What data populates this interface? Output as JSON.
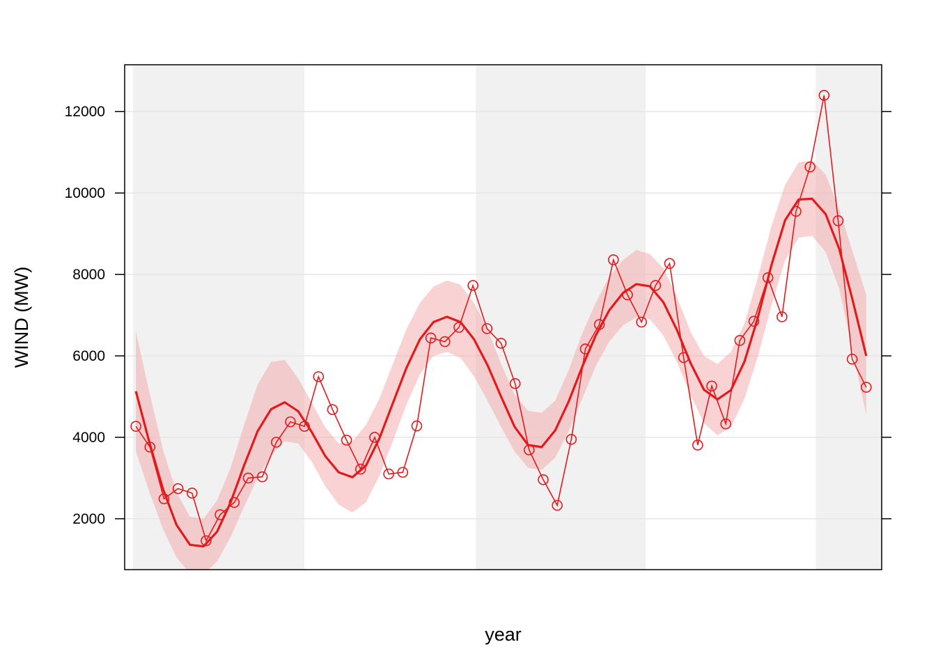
{
  "chart_data": {
    "type": "line",
    "xlabel": "year",
    "ylabel": "WIND (MW)",
    "title": "",
    "ylim": [
      750,
      13150
    ],
    "y_ticks": [
      2000,
      4000,
      6000,
      8000,
      10000,
      12000
    ],
    "y_tick_labels": [
      "2000",
      "4000",
      "6000",
      "8000",
      "10000",
      "12000"
    ],
    "grid": true,
    "x_index": [
      1,
      2,
      3,
      4,
      5,
      6,
      7,
      8,
      9,
      10,
      11,
      12,
      13,
      14,
      15,
      16,
      17,
      18,
      19,
      20,
      21,
      22,
      23,
      24,
      25,
      26,
      27,
      28,
      29,
      30,
      31,
      32,
      33,
      34,
      35,
      36,
      37,
      38,
      39,
      40,
      41,
      42,
      43,
      44,
      45,
      46,
      47,
      48,
      49,
      50,
      51,
      52,
      53
    ],
    "xlim": [
      0.2,
      54.1
    ],
    "shaded_spans": [
      [
        0.8,
        13.0
      ],
      [
        25.2,
        37.3
      ],
      [
        49.4,
        54.1
      ]
    ],
    "colors": {
      "series": "#e31a1c",
      "band": "#f4a6a8",
      "shade": "#f1f1f1",
      "grid": "#e6e6e6"
    },
    "series": [
      {
        "values": [
          4270,
          3760,
          2490,
          2740,
          2630,
          1460,
          2100,
          2400,
          3000,
          3030,
          3880,
          4380,
          4270,
          5490,
          4680,
          3930,
          3220,
          4000,
          3100,
          3140,
          4280,
          6440,
          6350,
          6700,
          7730,
          6670,
          6310,
          5320,
          3690,
          2960,
          2330,
          3950,
          6170,
          6770,
          8360,
          7500,
          6830,
          7730,
          8270,
          5960,
          3810,
          5260,
          4330,
          6380,
          6850,
          7920,
          6960,
          9550,
          10640,
          12400,
          9320,
          5920,
          5230
        ],
        "marker": "circle"
      }
    ],
    "smooth": {
      "values": [
        5130,
        3870,
        2730,
        1850,
        1360,
        1320,
        1680,
        2400,
        3310,
        4150,
        4690,
        4860,
        4640,
        4130,
        3540,
        3140,
        3020,
        3300,
        3970,
        4840,
        5700,
        6410,
        6830,
        6960,
        6830,
        6410,
        5770,
        5000,
        4260,
        3810,
        3760,
        4170,
        4880,
        5730,
        6500,
        7120,
        7540,
        7760,
        7710,
        7320,
        6640,
        5830,
        5170,
        4930,
        5160,
        5860,
        6960,
        8240,
        9330,
        9840,
        9860,
        9480,
        8630,
        7360,
        6000
      ],
      "lower": [
        3650,
        2650,
        1750,
        1050,
        650,
        620,
        950,
        1550,
        2300,
        3000,
        3550,
        3900,
        3850,
        3400,
        2800,
        2350,
        2150,
        2400,
        3050,
        3900,
        4800,
        5550,
        6000,
        6100,
        5950,
        5500,
        4900,
        4250,
        3650,
        3250,
        3200,
        3500,
        4150,
        4950,
        5750,
        6350,
        6750,
        6950,
        6900,
        6500,
        5850,
        5050,
        4350,
        4050,
        4250,
        4950,
        6000,
        7250,
        8350,
        8900,
        8950,
        8550,
        7650,
        6100,
        4550
      ],
      "upper": [
        6600,
        5100,
        3700,
        2650,
        2050,
        2000,
        2450,
        3250,
        4300,
        5300,
        5850,
        5900,
        5450,
        4850,
        4250,
        3850,
        3900,
        4300,
        4950,
        5800,
        6650,
        7300,
        7700,
        7850,
        7750,
        7300,
        6650,
        5800,
        5050,
        4650,
        4600,
        4900,
        5650,
        6550,
        7300,
        7950,
        8350,
        8600,
        8500,
        8150,
        7450,
        6600,
        6000,
        5800,
        6100,
        6800,
        7950,
        9200,
        10200,
        10750,
        10800,
        10450,
        9600,
        8550,
        7500
      ]
    }
  }
}
